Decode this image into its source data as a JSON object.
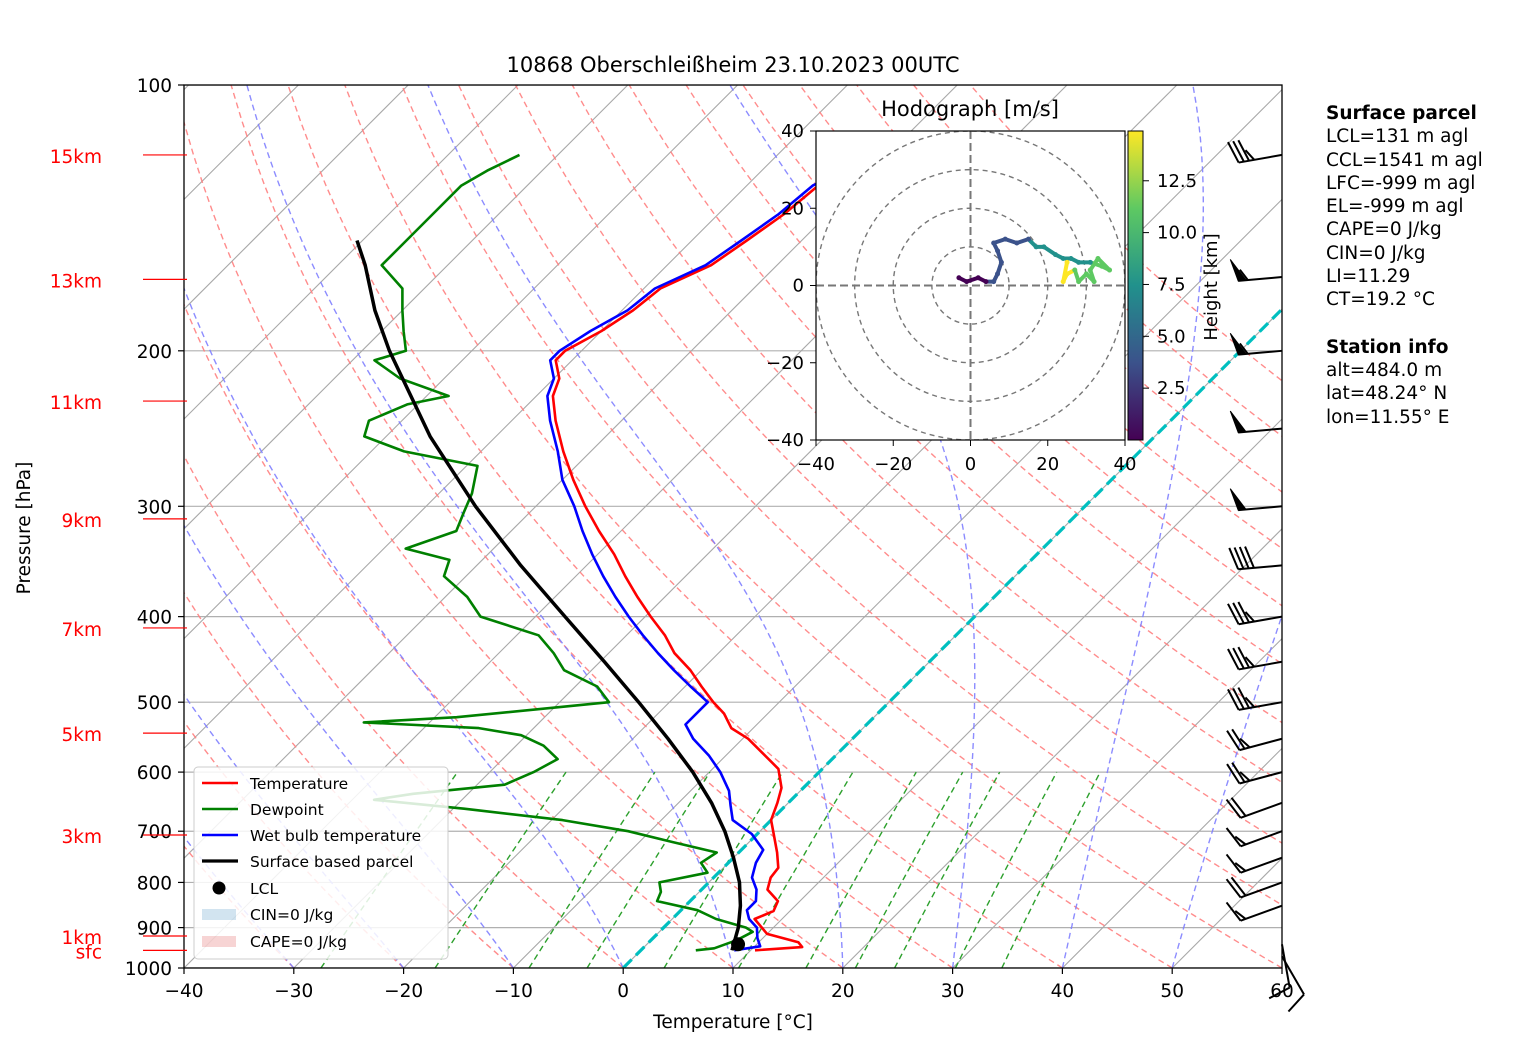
{
  "title": "10868 Oberschleißheim 23.10.2023 00UTC",
  "xlabel": "Temperature [°C]",
  "ylabel": "Pressure [hPa]",
  "hodograph": {
    "title": "Hodograph [m/s]",
    "colorbar_label": "Height [km]",
    "colorbar_ticks": [
      "2.5",
      "5.0",
      "7.5",
      "10.0",
      "12.5"
    ],
    "ticks": [
      "−40",
      "−20",
      "0",
      "20",
      "40"
    ],
    "colormap": [
      "#440154",
      "#3b528b",
      "#21918c",
      "#5ec962",
      "#fde725"
    ]
  },
  "legend": {
    "temperature": "Temperature",
    "dewpoint": "Dewpoint",
    "wetbulb": "Wet bulb temperature",
    "parcel": "Surface based parcel",
    "lcl": "LCL",
    "cin": "CIN=0 J/kg",
    "cape": "CAPE=0 J/kg"
  },
  "colors": {
    "temperature": "#ff0000",
    "dewpoint": "#008000",
    "wetbulb": "#0000ff",
    "parcel": "#000000",
    "freezing": "#00bfbf",
    "dry_adiabat": "#ff8080",
    "moist_adiabat": "#8080ff",
    "mixing_ratio": "#2ca02c",
    "height_label": "#ff0000"
  },
  "info": {
    "surface_header": "Surface parcel",
    "lcl": "LCL=131 m agl",
    "ccl": "CCL=1541 m agl",
    "lfc": "LFC=-999 m agl",
    "el": "EL=-999 m agl",
    "cape": "CAPE=0 J/kg",
    "cin": "CIN=0 J/kg",
    "li": "LI=11.29",
    "ct": "CT=19.2 °C",
    "station_header": "Station info",
    "alt": "alt=484.0 m",
    "lat": "lat=48.24° N",
    "lon": "lon=11.55° E"
  },
  "chart_data": {
    "type": "line",
    "x_ticks": [
      "−40",
      "−30",
      "−20",
      "−10",
      "0",
      "10",
      "20",
      "30",
      "40",
      "50",
      "60"
    ],
    "xlim": [
      -40,
      60
    ],
    "p_ticks": [
      100,
      200,
      300,
      400,
      500,
      600,
      700,
      800,
      900,
      1000
    ],
    "ylim": [
      1000,
      100
    ],
    "height_labels": [
      {
        "text": "sfc",
        "p": 955
      },
      {
        "text": "1km",
        "p": 920
      },
      {
        "text": "3km",
        "p": 707
      },
      {
        "text": "5km",
        "p": 542
      },
      {
        "text": "7km",
        "p": 412
      },
      {
        "text": "9km",
        "p": 310
      },
      {
        "text": "11km",
        "p": 228
      },
      {
        "text": "13km",
        "p": 166
      },
      {
        "text": "15km",
        "p": 120
      }
    ],
    "series": [
      {
        "name": "Temperature",
        "points": [
          [
            955,
            10.4
          ],
          [
            947,
            14.4
          ],
          [
            935,
            13.6
          ],
          [
            915,
            10.0
          ],
          [
            880,
            7.5
          ],
          [
            862,
            8.5
          ],
          [
            840,
            8.0
          ],
          [
            815,
            6.0
          ],
          [
            790,
            5.2
          ],
          [
            770,
            5.0
          ],
          [
            740,
            3.5
          ],
          [
            705,
            1.5
          ],
          [
            680,
            0.0
          ],
          [
            650,
            -1.0
          ],
          [
            625,
            -2.0
          ],
          [
            595,
            -4.0
          ],
          [
            570,
            -7.0
          ],
          [
            550,
            -9.5
          ],
          [
            535,
            -12.0
          ],
          [
            515,
            -14.0
          ],
          [
            500,
            -16.0
          ],
          [
            480,
            -18.5
          ],
          [
            460,
            -21.0
          ],
          [
            440,
            -24.0
          ],
          [
            420,
            -26.5
          ],
          [
            400,
            -29.5
          ],
          [
            380,
            -32.5
          ],
          [
            360,
            -35.5
          ],
          [
            340,
            -38.5
          ],
          [
            320,
            -42.0
          ],
          [
            300,
            -45.5
          ],
          [
            280,
            -49.0
          ],
          [
            260,
            -52.5
          ],
          [
            240,
            -56.0
          ],
          [
            225,
            -58.5
          ],
          [
            215,
            -59.5
          ],
          [
            205,
            -61.5
          ],
          [
            200,
            -61.5
          ],
          [
            190,
            -60.0
          ],
          [
            180,
            -59.0
          ],
          [
            170,
            -58.5
          ],
          [
            160,
            -56.0
          ],
          [
            150,
            -55.0
          ],
          [
            140,
            -54.0
          ],
          [
            130,
            -53.5
          ],
          [
            125,
            -52.0
          ],
          [
            120,
            -49.0
          ]
        ]
      },
      {
        "name": "Dewpoint",
        "points": [
          [
            955,
            5.0
          ],
          [
            950,
            6.5
          ],
          [
            930,
            7.8
          ],
          [
            910,
            8.5
          ],
          [
            900,
            7.5
          ],
          [
            880,
            4.0
          ],
          [
            860,
            1.5
          ],
          [
            840,
            -3.0
          ],
          [
            820,
            -3.5
          ],
          [
            800,
            -4.5
          ],
          [
            780,
            -1.0
          ],
          [
            760,
            -2.5
          ],
          [
            740,
            -2.0
          ],
          [
            720,
            -7.0
          ],
          [
            700,
            -12.0
          ],
          [
            680,
            -19.0
          ],
          [
            660,
            -29.0
          ],
          [
            645,
            -38.0
          ],
          [
            635,
            -35.0
          ],
          [
            620,
            -27.5
          ],
          [
            600,
            -26.0
          ],
          [
            580,
            -25.0
          ],
          [
            560,
            -27.5
          ],
          [
            545,
            -30.5
          ],
          [
            535,
            -35.0
          ],
          [
            527,
            -46.0
          ],
          [
            520,
            -38.0
          ],
          [
            500,
            -25.5
          ],
          [
            480,
            -28.0
          ],
          [
            460,
            -32.5
          ],
          [
            440,
            -35.0
          ],
          [
            420,
            -38.0
          ],
          [
            400,
            -45.0
          ],
          [
            380,
            -48.0
          ],
          [
            360,
            -52.0
          ],
          [
            345,
            -53.0
          ],
          [
            335,
            -58.0
          ],
          [
            320,
            -55.0
          ],
          [
            305,
            -56.0
          ],
          [
            290,
            -57.0
          ],
          [
            270,
            -59.0
          ],
          [
            260,
            -67.0
          ],
          [
            250,
            -72.0
          ],
          [
            240,
            -73.0
          ],
          [
            230,
            -71.0
          ],
          [
            225,
            -68.0
          ],
          [
            215,
            -74.0
          ],
          [
            205,
            -78.0
          ],
          [
            200,
            -76.0
          ],
          [
            190,
            -78.0
          ],
          [
            180,
            -80.0
          ],
          [
            170,
            -82.0
          ],
          [
            160,
            -86.0
          ],
          [
            150,
            -86.0
          ],
          [
            140,
            -86.0
          ],
          [
            130,
            -86.0
          ],
          [
            125,
            -85.0
          ],
          [
            120,
            -83.5
          ]
        ]
      },
      {
        "name": "Wet bulb temperature",
        "points": [
          [
            955,
            8.5
          ],
          [
            945,
            10.5
          ],
          [
            925,
            9.5
          ],
          [
            900,
            8.5
          ],
          [
            880,
            7.0
          ],
          [
            860,
            6.0
          ],
          [
            840,
            6.0
          ],
          [
            815,
            5.0
          ],
          [
            790,
            3.5
          ],
          [
            760,
            2.5
          ],
          [
            735,
            2.0
          ],
          [
            705,
            -0.5
          ],
          [
            680,
            -3.5
          ],
          [
            655,
            -5.0
          ],
          [
            630,
            -6.5
          ],
          [
            600,
            -9.0
          ],
          [
            575,
            -11.5
          ],
          [
            550,
            -14.5
          ],
          [
            530,
            -16.5
          ],
          [
            500,
            -16.5
          ],
          [
            480,
            -19.5
          ],
          [
            460,
            -22.5
          ],
          [
            440,
            -25.5
          ],
          [
            420,
            -28.5
          ],
          [
            400,
            -31.5
          ],
          [
            380,
            -34.5
          ],
          [
            360,
            -37.5
          ],
          [
            340,
            -40.5
          ],
          [
            320,
            -43.5
          ],
          [
            300,
            -46.5
          ],
          [
            280,
            -50.0
          ],
          [
            260,
            -53.0
          ],
          [
            240,
            -56.5
          ],
          [
            225,
            -59.0
          ],
          [
            215,
            -60.0
          ],
          [
            205,
            -62.0
          ],
          [
            200,
            -62.0
          ],
          [
            190,
            -61.0
          ],
          [
            180,
            -59.5
          ],
          [
            170,
            -59.0
          ],
          [
            160,
            -56.5
          ],
          [
            150,
            -55.5
          ],
          [
            140,
            -54.5
          ],
          [
            130,
            -54.0
          ],
          [
            125,
            -52.5
          ],
          [
            120,
            -49.5
          ]
        ]
      },
      {
        "name": "Surface based parcel",
        "points": [
          [
            955,
            8.3
          ],
          [
            900,
            6.8
          ],
          [
            850,
            5.0
          ],
          [
            800,
            2.8
          ],
          [
            750,
            0.0
          ],
          [
            700,
            -3.2
          ],
          [
            650,
            -7.0
          ],
          [
            600,
            -11.5
          ],
          [
            550,
            -16.8
          ],
          [
            500,
            -22.8
          ],
          [
            450,
            -29.6
          ],
          [
            400,
            -37.3
          ],
          [
            350,
            -46.0
          ],
          [
            300,
            -55.5
          ],
          [
            250,
            -66.0
          ],
          [
            200,
            -77.5
          ],
          [
            180,
            -82.5
          ],
          [
            160,
            -87.5
          ],
          [
            150,
            -90.5
          ]
        ]
      }
    ],
    "lcl": {
      "p": 940,
      "t": 8.3
    },
    "freezing_level_t": 0,
    "hodograph_data": {
      "xlim": [
        -40,
        40
      ],
      "ylim": [
        -40,
        40
      ],
      "rings": [
        10,
        20,
        30,
        40
      ],
      "points": [
        [
          -3,
          2,
          0.2
        ],
        [
          -1,
          1,
          0.6
        ],
        [
          2,
          2,
          1.0
        ],
        [
          4,
          1,
          1.5
        ],
        [
          6,
          1,
          2.0
        ],
        [
          7,
          3,
          2.5
        ],
        [
          8,
          6,
          3.0
        ],
        [
          7,
          9,
          3.5
        ],
        [
          6,
          11,
          4.0
        ],
        [
          9,
          12,
          4.5
        ],
        [
          12,
          11,
          5.0
        ],
        [
          15,
          12,
          5.5
        ],
        [
          17,
          10,
          6.0
        ],
        [
          19,
          10,
          6.5
        ],
        [
          22,
          8,
          7.0
        ],
        [
          24,
          7,
          7.5
        ],
        [
          26,
          7,
          8.0
        ],
        [
          28,
          6,
          8.5
        ],
        [
          31,
          6,
          9.0
        ],
        [
          34,
          5,
          9.5
        ],
        [
          36,
          4,
          10.0
        ],
        [
          33,
          7,
          10.5
        ],
        [
          31,
          4,
          11.0
        ],
        [
          32,
          1,
          11.5
        ],
        [
          30,
          3,
          12.0
        ],
        [
          28,
          1,
          12.5
        ],
        [
          27,
          4,
          13.0
        ],
        [
          25,
          3,
          13.5
        ],
        [
          24,
          1,
          14.0
        ],
        [
          25,
          6,
          14.5
        ]
      ]
    },
    "wind_barbs": [
      {
        "p": 120,
        "speed": 35,
        "dir": 260
      },
      {
        "p": 165,
        "speed": 55,
        "dir": 265
      },
      {
        "p": 200,
        "speed": 55,
        "dir": 265
      },
      {
        "p": 245,
        "speed": 50,
        "dir": 265
      },
      {
        "p": 300,
        "speed": 50,
        "dir": 265
      },
      {
        "p": 350,
        "speed": 40,
        "dir": 265
      },
      {
        "p": 400,
        "speed": 35,
        "dir": 260
      },
      {
        "p": 450,
        "speed": 35,
        "dir": 260
      },
      {
        "p": 500,
        "speed": 35,
        "dir": 260
      },
      {
        "p": 550,
        "speed": 25,
        "dir": 255
      },
      {
        "p": 600,
        "speed": 25,
        "dir": 255
      },
      {
        "p": 650,
        "speed": 20,
        "dir": 250
      },
      {
        "p": 700,
        "speed": 15,
        "dir": 250
      },
      {
        "p": 750,
        "speed": 15,
        "dir": 250
      },
      {
        "p": 800,
        "speed": 20,
        "dir": 250
      },
      {
        "p": 850,
        "speed": 15,
        "dir": 250
      },
      {
        "p": 940,
        "speed": 10,
        "dir": 170
      },
      {
        "p": 970,
        "speed": 10,
        "dir": 150
      }
    ]
  }
}
